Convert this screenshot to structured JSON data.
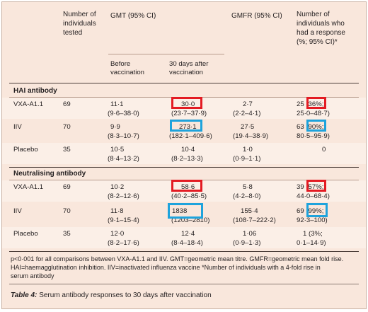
{
  "header": {
    "col_n": [
      "Number of",
      "individuals",
      "tested"
    ],
    "col_gmt": "GMT (95% CI)",
    "col_gmfr": "GMFR (95% CI)",
    "col_resp": [
      "Number of",
      "individuals who",
      "had a response",
      "(%; 95% CI)*"
    ],
    "sub_before": [
      "Before",
      "vaccination"
    ],
    "sub_after": [
      "30 days after",
      "vaccination"
    ]
  },
  "sections": [
    {
      "title": "HAI antibody",
      "rows": [
        {
          "group": "VXA-A1.1",
          "n": "69",
          "before": "11·1",
          "before_ci": "(9·6–38·0)",
          "after": "30·0",
          "after_ci": "(23·7–37·9)",
          "gmfr": "2·7",
          "gmfr_ci": "(2·2–4·1)",
          "resp": "25 (36%;",
          "resp_ci": "25·0–48·7)"
        },
        {
          "group": "IIV",
          "n": "70",
          "before": "9·9",
          "before_ci": "(8·3–10·7)",
          "after": "273·1",
          "after_ci": "(182·1–409·6)",
          "gmfr": "27·5",
          "gmfr_ci": "(19·4–38·9)",
          "resp": "63 (90%;",
          "resp_ci": "80·5–95·9)"
        },
        {
          "group": "Placebo",
          "n": "35",
          "before": "10·5",
          "before_ci": "(8·4–13·2)",
          "after": "10·4",
          "after_ci": "(8·2–13·3)",
          "gmfr": "1·0",
          "gmfr_ci": "(0·9–1·1)",
          "resp": "0",
          "resp_ci": ""
        }
      ]
    },
    {
      "title": "Neutralising antibody",
      "rows": [
        {
          "group": "VXA-A1.1",
          "n": "69",
          "before": "10·2",
          "before_ci": "(8·2–12·6)",
          "after": "58·6",
          "after_ci": "(40·2–85·5)",
          "gmfr": "5·8",
          "gmfr_ci": "(4·2–8·0)",
          "resp": "39 (57%;",
          "resp_ci": "44·0–68·4)"
        },
        {
          "group": "IIV",
          "n": "70",
          "before": "11·8",
          "before_ci": "(9·1–15·4)",
          "after": "1838",
          "after_ci": "(1203–2810)",
          "gmfr": "155·4",
          "gmfr_ci": "(108·7–222·2)",
          "resp": "69 (99%;",
          "resp_ci": "92·3–100)"
        },
        {
          "group": "Placebo",
          "n": "35",
          "before": "12·0",
          "before_ci": "(8·2–17·6)",
          "after": "12·4",
          "after_ci": "(8·4–18·4)",
          "gmfr": "1·06",
          "gmfr_ci": "(0·9–1·3)",
          "resp": "1 (3%;",
          "resp_ci": "0·1–14·9)"
        }
      ]
    }
  ],
  "footnote": [
    "p<0·001 for all comparisons between VXA-A1.1 and IIV. GMT=geometric mean titre. GMFR=geometric mean fold rise.",
    "HAI=haemagglutination inhibition. IIV=inactivated influenza vaccine *Number of individuals with a 4-fold rise in",
    "serum antibody"
  ],
  "caption": {
    "label": "Table 4:",
    "text": " Serum antibody responses to 30 days after vaccination"
  },
  "highlight_colors": {
    "red": "#e31b23",
    "blue": "#1ea3dc"
  }
}
